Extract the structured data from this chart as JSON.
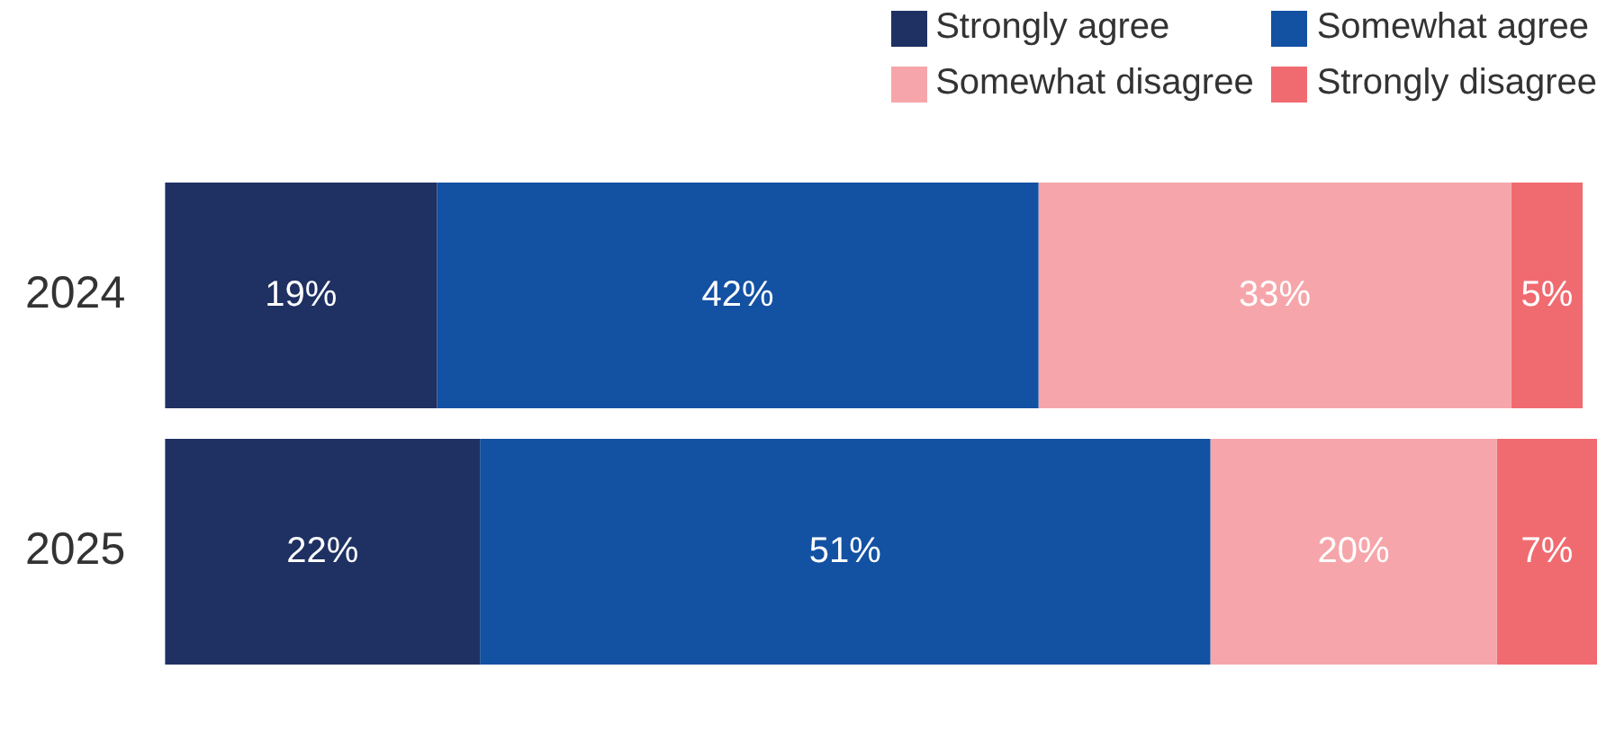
{
  "chart_data": {
    "type": "bar",
    "orientation": "horizontal",
    "stacked": true,
    "legend": "top right",
    "categories": [
      "2024",
      "2025"
    ],
    "series": [
      {
        "name": "Strongly agree",
        "color": "#1f3062",
        "values": [
          19,
          22
        ],
        "value_labels": [
          "19%",
          "22%"
        ]
      },
      {
        "name": "Somewhat agree",
        "color": "#1351a3",
        "values": [
          42,
          51
        ],
        "value_labels": [
          "42%",
          "51%"
        ]
      },
      {
        "name": "Somewhat disagree",
        "color": "#f6a6aa",
        "values": [
          33,
          20
        ],
        "value_labels": [
          "33%",
          "20%"
        ]
      },
      {
        "name": "Strongly disagree",
        "color": "#f06b70",
        "values": [
          5,
          7
        ],
        "value_labels": [
          "5%",
          "7%"
        ]
      }
    ]
  }
}
